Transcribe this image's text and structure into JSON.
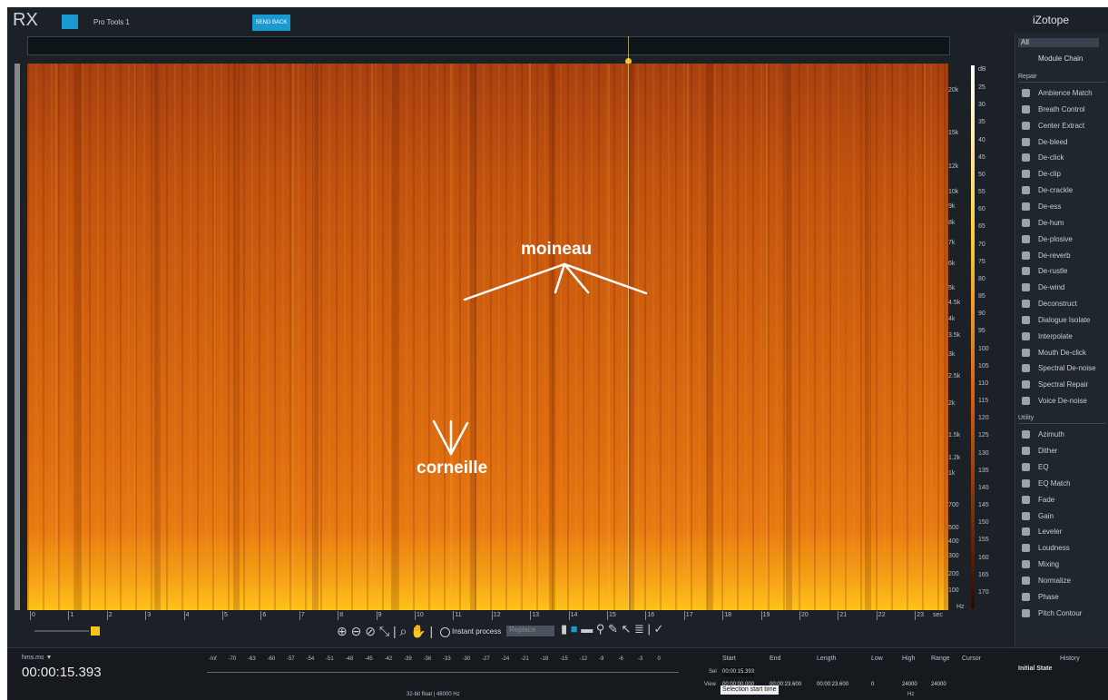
{
  "top_bar": {
    "logo": "RX",
    "session": "Pro Tools 1",
    "send_back": "SEND BACK",
    "brand": "iZotope"
  },
  "annotations": {
    "moineau": "moineau",
    "corneille": "corneille"
  },
  "freq_axis": {
    "labels": [
      "20k",
      "15k",
      "12k",
      "10k",
      "9k",
      "8k",
      "7k",
      "6k",
      "5k",
      "4.5k",
      "4k",
      "3.5k",
      "3k",
      "2.5k",
      "2k",
      "1.5k",
      "1.2k",
      "1k",
      "700",
      "500",
      "400",
      "300",
      "200",
      "100"
    ],
    "unit": "Hz"
  },
  "db_scale": {
    "unit": "dB",
    "labels": [
      "25",
      "30",
      "35",
      "40",
      "45",
      "50",
      "55",
      "60",
      "65",
      "70",
      "75",
      "80",
      "85",
      "90",
      "95",
      "100",
      "105",
      "110",
      "115",
      "120",
      "125",
      "130",
      "135",
      "140",
      "145",
      "150",
      "155",
      "160",
      "165",
      "170"
    ]
  },
  "time_axis": {
    "labels": [
      "0",
      "1",
      "2",
      "3",
      "4",
      "5",
      "6",
      "7",
      "8",
      "9",
      "10",
      "11",
      "12",
      "13",
      "14",
      "15",
      "16",
      "17",
      "18",
      "19",
      "20",
      "21",
      "22",
      "23"
    ],
    "unit": "sec"
  },
  "toolbar": {
    "instant_process": "Instant process",
    "mode": "Replace"
  },
  "transport": {
    "format": "hms.ms ▼",
    "time": "00:00:15.393"
  },
  "meter": {
    "labels": [
      "-Inf",
      "-70",
      "-63",
      "-60",
      "-57",
      "-54",
      "-51",
      "-48",
      "-45",
      "-42",
      "-39",
      "-36",
      "-33",
      "-30",
      "-27",
      "-24",
      "-21",
      "-18",
      "-15",
      "-12",
      "-9",
      "-6",
      "-3",
      "0"
    ],
    "info": "32-bit float | 48000 Hz"
  },
  "selection": {
    "headers": [
      "Start",
      "End",
      "Length",
      "Low",
      "High",
      "Range",
      "Cursor"
    ],
    "sel_label": "Sel",
    "sel_start": "00:00:15.393",
    "view_label": "View",
    "view": [
      "00:00:00.000",
      "00:00:23.600",
      "00:00:23.600",
      "0",
      "24000",
      "24000"
    ],
    "hz": "Hz",
    "tooltip": "Selection start time"
  },
  "module_panel": {
    "filter": "All",
    "module_chain": "Module Chain",
    "repair": {
      "title": "Repair",
      "items": [
        "Ambience Match",
        "Breath Control",
        "Center Extract",
        "De-bleed",
        "De-click",
        "De-clip",
        "De-crackle",
        "De-ess",
        "De-hum",
        "De-plosive",
        "De-reverb",
        "De-rustle",
        "De-wind",
        "Deconstruct",
        "Dialogue Isolate",
        "Interpolate",
        "Mouth De-click",
        "Spectral De-noise",
        "Spectral Repair",
        "Voice De-noise"
      ]
    },
    "utility": {
      "title": "Utility",
      "items": [
        "Azimuth",
        "Dither",
        "EQ",
        "EQ Match",
        "Fade",
        "Gain",
        "Leveler",
        "Loudness",
        "Mixing",
        "Normalize",
        "Phase",
        "Pitch Contour"
      ]
    }
  },
  "history": {
    "title": "History",
    "items": [
      "Initial State"
    ]
  }
}
